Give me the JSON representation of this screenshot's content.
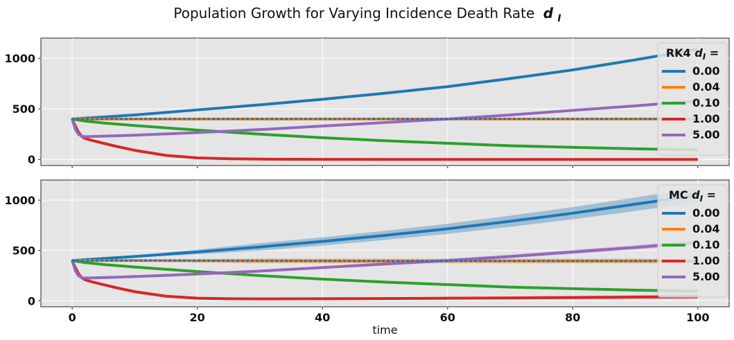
{
  "figure": {
    "title": "Population Growth for Varying Incidence Death Rate",
    "title_symbol": "d",
    "title_symbol_sub": "I"
  },
  "chart_data": [
    {
      "type": "line",
      "legend_title": "RK4",
      "legend_symbol": "d",
      "legend_symbol_sub": "I",
      "legend_equals": " =",
      "legend_placement": "top-right",
      "grid": true,
      "xlim": [
        -5,
        105
      ],
      "ylim": [
        -60,
        1200
      ],
      "xticks": [
        0,
        20,
        40,
        60,
        80,
        100
      ],
      "xtick_labels_visible": false,
      "yticks": [
        0,
        500,
        1000
      ],
      "ytick_labels": [
        "0",
        "500",
        "1000"
      ],
      "xlabel": "",
      "series": [
        {
          "name": "0.00",
          "color": "#1f77b4",
          "x": [
            0,
            10,
            20,
            30,
            40,
            50,
            60,
            70,
            80,
            90,
            100
          ],
          "y": [
            400,
            440,
            490,
            540,
            595,
            655,
            720,
            800,
            885,
            985,
            1090
          ],
          "band": 0
        },
        {
          "name": "0.04",
          "color": "#ff7f0e",
          "x": [
            0,
            10,
            20,
            30,
            40,
            50,
            60,
            70,
            80,
            90,
            100
          ],
          "y": [
            400,
            400,
            400,
            400,
            400,
            400,
            400,
            400,
            400,
            400,
            400
          ],
          "band": 0
        },
        {
          "name": "0.10",
          "color": "#2ca02c",
          "x": [
            0,
            2,
            5,
            10,
            20,
            30,
            40,
            50,
            60,
            70,
            80,
            90,
            100
          ],
          "y": [
            400,
            380,
            360,
            335,
            290,
            250,
            215,
            185,
            160,
            135,
            120,
            105,
            95
          ],
          "band": 0
        },
        {
          "name": "1.00",
          "color": "#d62728",
          "x": [
            0,
            0.5,
            1,
            1.5,
            2,
            3,
            5,
            7,
            10,
            15,
            20,
            25,
            30,
            40,
            50,
            60,
            70,
            80,
            90,
            100
          ],
          "y": [
            400,
            330,
            270,
            230,
            210,
            190,
            160,
            130,
            90,
            40,
            15,
            7,
            3,
            1,
            0,
            0,
            0,
            0,
            0,
            0
          ],
          "band": 0
        },
        {
          "name": "5.00",
          "color": "#9467bd",
          "x": [
            0,
            0.5,
            1,
            1.5,
            2,
            5,
            10,
            20,
            30,
            40,
            50,
            60,
            70,
            80,
            90,
            100
          ],
          "y": [
            400,
            300,
            250,
            230,
            225,
            230,
            240,
            265,
            295,
            330,
            365,
            400,
            440,
            485,
            530,
            580
          ],
          "band": 0
        }
      ]
    },
    {
      "type": "line",
      "legend_title": "MC",
      "legend_symbol": "d",
      "legend_symbol_sub": "I",
      "legend_equals": " =",
      "legend_placement": "top-right",
      "grid": true,
      "xlim": [
        -5,
        105
      ],
      "ylim": [
        -60,
        1200
      ],
      "xticks": [
        0,
        20,
        40,
        60,
        80,
        100
      ],
      "xtick_labels_visible": true,
      "xtick_labels": [
        "0",
        "20",
        "40",
        "60",
        "80",
        "100"
      ],
      "yticks": [
        0,
        500,
        1000
      ],
      "ytick_labels": [
        "0",
        "500",
        "1000"
      ],
      "xlabel": "time",
      "series": [
        {
          "name": "0.00",
          "color": "#1f77b4",
          "x": [
            0,
            10,
            20,
            30,
            40,
            50,
            60,
            70,
            80,
            90,
            100
          ],
          "y": [
            400,
            440,
            485,
            535,
            590,
            650,
            715,
            790,
            870,
            960,
            1050
          ],
          "band": 0.07
        },
        {
          "name": "0.04",
          "color": "#ff7f0e",
          "x": [
            0,
            10,
            20,
            30,
            40,
            50,
            60,
            70,
            80,
            90,
            100
          ],
          "y": [
            400,
            400,
            398,
            397,
            396,
            395,
            395,
            395,
            395,
            395,
            395
          ],
          "band": 0.06
        },
        {
          "name": "0.10",
          "color": "#2ca02c",
          "x": [
            0,
            2,
            5,
            10,
            20,
            30,
            40,
            50,
            60,
            70,
            80,
            90,
            100
          ],
          "y": [
            400,
            380,
            360,
            335,
            290,
            250,
            215,
            185,
            160,
            135,
            120,
            105,
            95
          ],
          "band": 0.02
        },
        {
          "name": "1.00",
          "color": "#d62728",
          "x": [
            0,
            0.5,
            1,
            1.5,
            2,
            3,
            5,
            7,
            10,
            15,
            20,
            25,
            30,
            40,
            50,
            60,
            70,
            80,
            90,
            100
          ],
          "y": [
            400,
            330,
            270,
            230,
            210,
            190,
            160,
            130,
            90,
            45,
            25,
            20,
            18,
            20,
            22,
            25,
            28,
            32,
            36,
            40
          ],
          "band": 0.5
        },
        {
          "name": "5.00",
          "color": "#9467bd",
          "x": [
            0,
            0.5,
            1,
            1.5,
            2,
            5,
            10,
            20,
            30,
            40,
            50,
            60,
            70,
            80,
            90,
            100
          ],
          "y": [
            400,
            300,
            250,
            230,
            225,
            230,
            240,
            265,
            295,
            330,
            365,
            400,
            440,
            485,
            530,
            580
          ],
          "band": 0.04
        }
      ]
    }
  ]
}
